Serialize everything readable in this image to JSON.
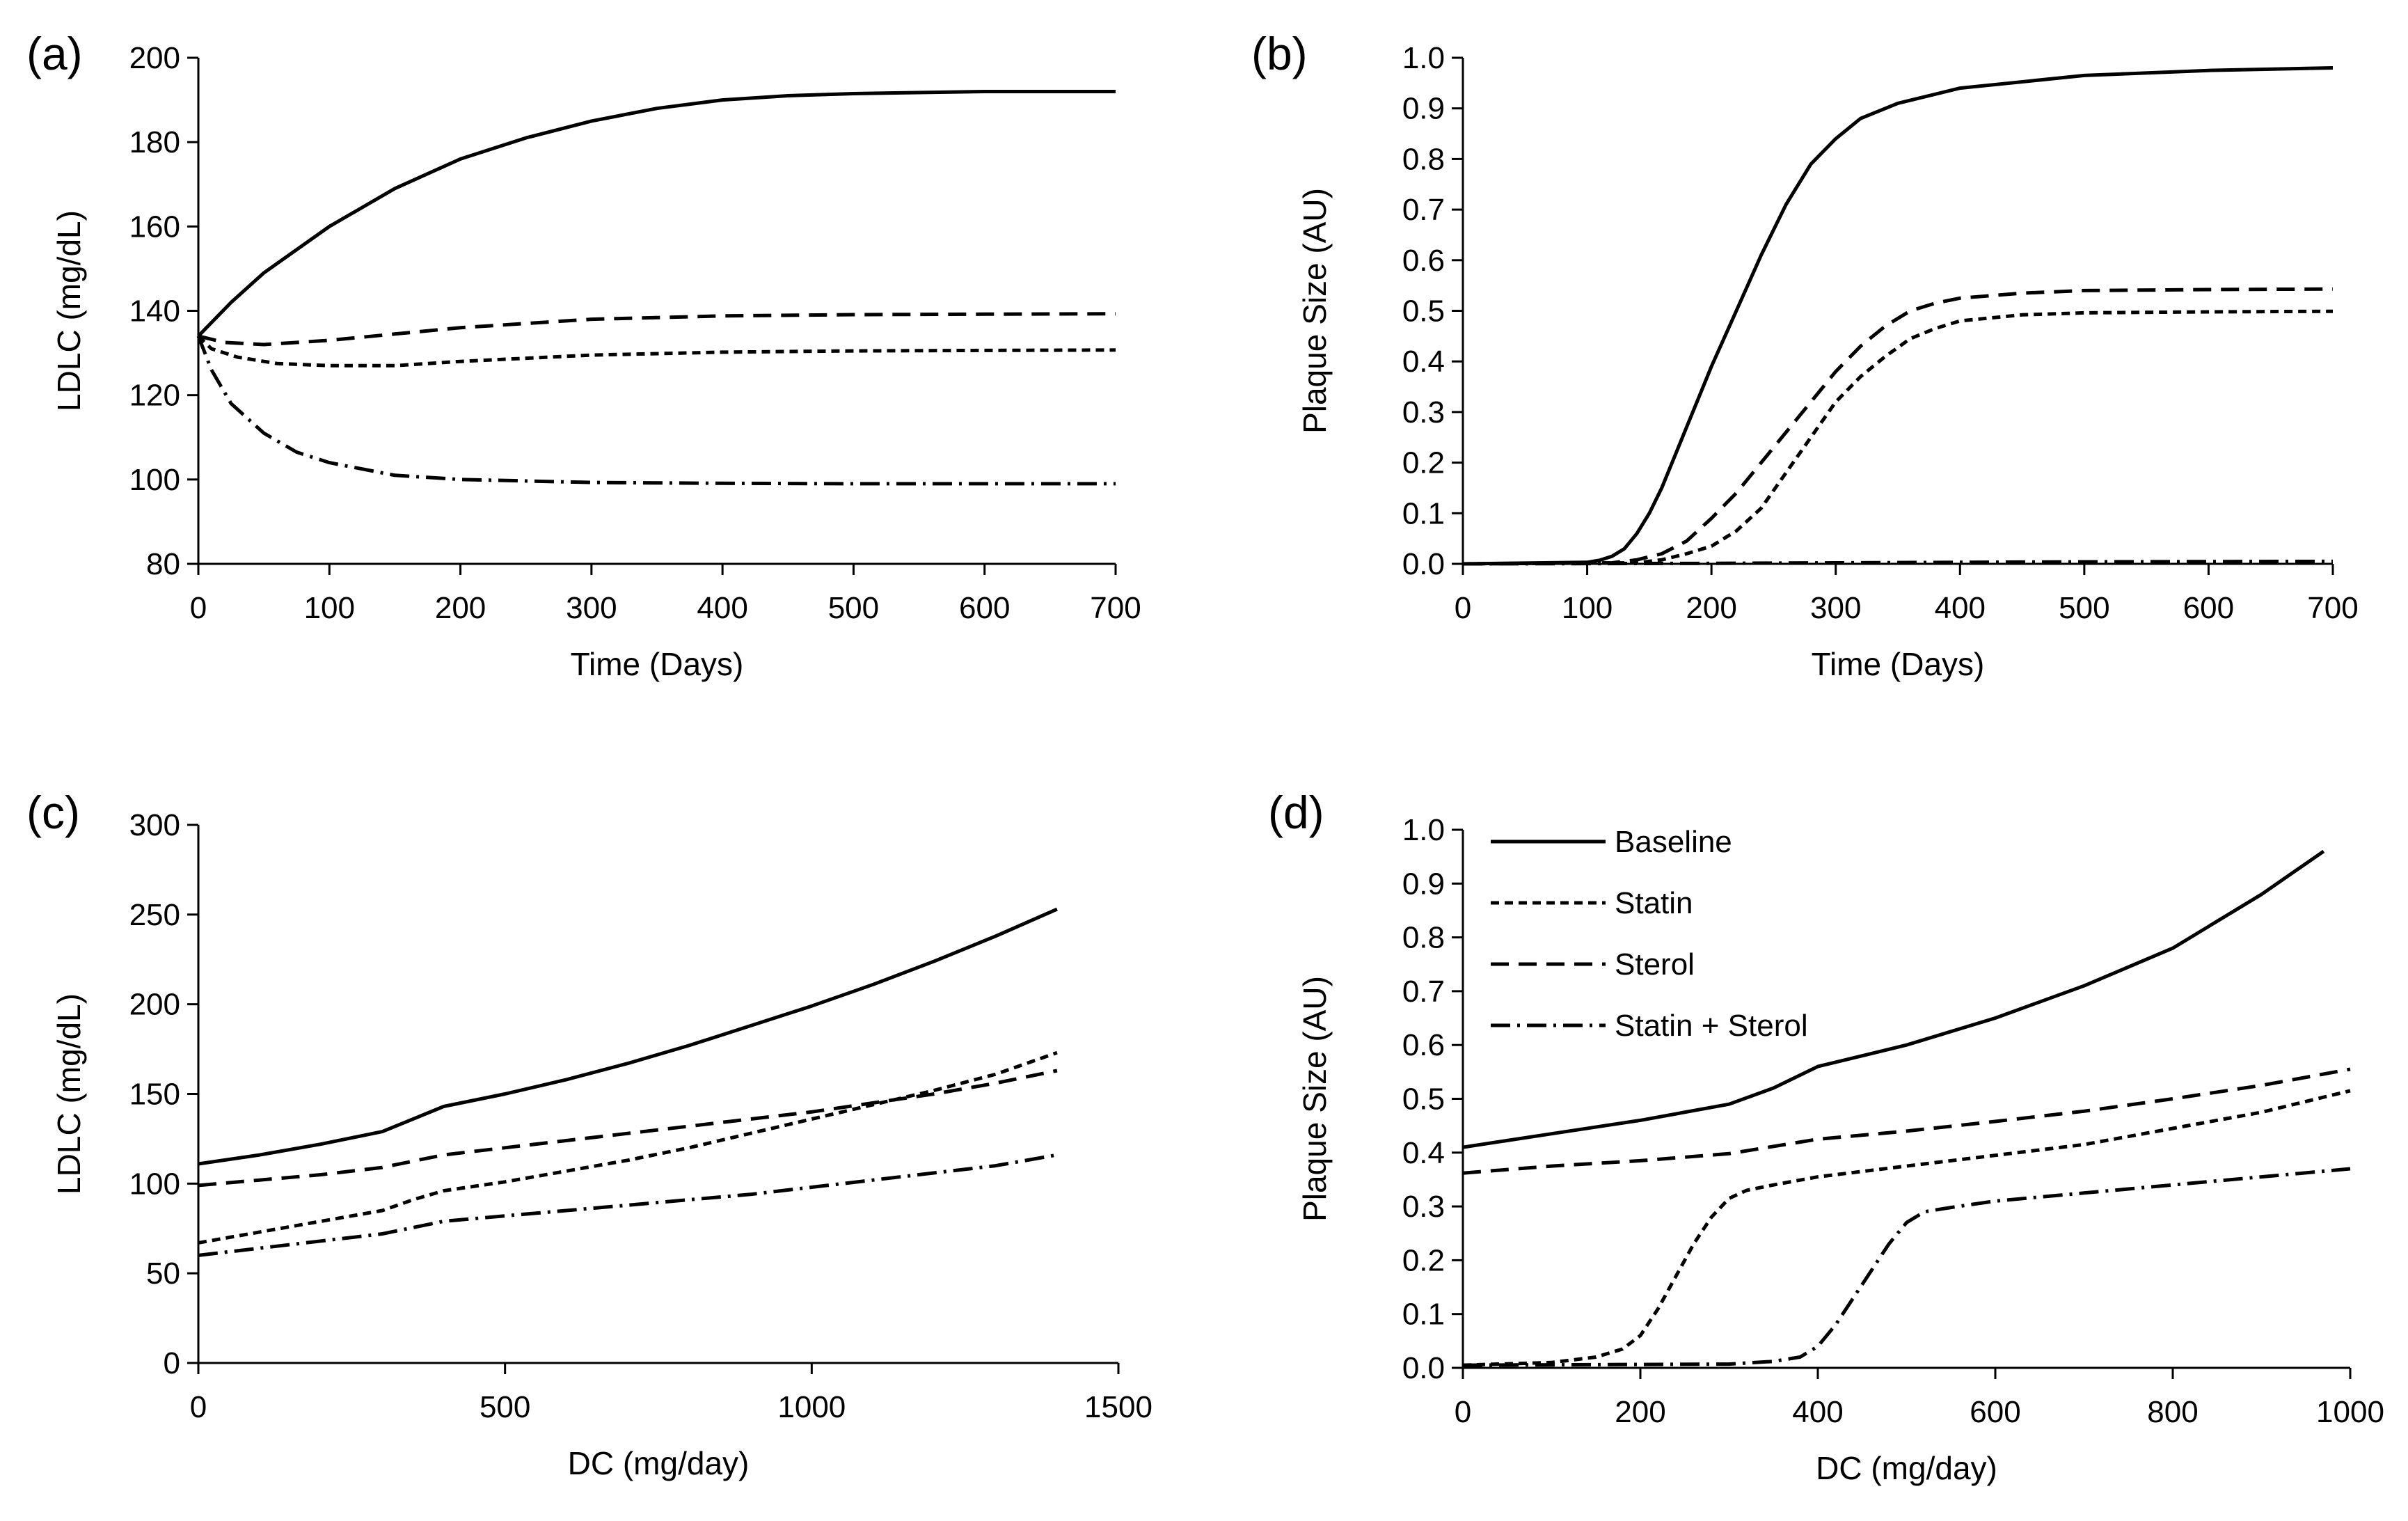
{
  "figure": {
    "series_styles": [
      {
        "name": "Baseline",
        "stroke": "#000000",
        "dash": ""
      },
      {
        "name": "Statin",
        "stroke": "#000000",
        "dash": "12 8"
      },
      {
        "name": "Sterol",
        "stroke": "#000000",
        "dash": "26 14"
      },
      {
        "name": "Statin + Sterol",
        "stroke": "#000000",
        "dash": "28 10 4 10"
      }
    ]
  },
  "chart_data": [
    {
      "panel": "(a)",
      "type": "line",
      "xlabel": "Time (Days)",
      "ylabel": "LDLC (mg/dL)",
      "xlim": [
        0,
        700
      ],
      "ylim": [
        80,
        200
      ],
      "xticks": [
        "0",
        "100",
        "200",
        "300",
        "400",
        "500",
        "600",
        "700"
      ],
      "yticks": [
        "80",
        "100",
        "120",
        "140",
        "160",
        "180",
        "200"
      ],
      "legend": false,
      "series": [
        {
          "name": "Baseline",
          "x": [
            0,
            25,
            50,
            100,
            150,
            200,
            250,
            300,
            350,
            400,
            450,
            500,
            600,
            700
          ],
          "y": [
            134,
            142,
            149,
            160,
            169,
            176,
            181,
            185,
            188,
            190,
            191,
            191.5,
            192,
            192
          ]
        },
        {
          "name": "Statin",
          "x": [
            0,
            10,
            30,
            60,
            100,
            150,
            200,
            300,
            400,
            500,
            600,
            700
          ],
          "y": [
            134,
            131,
            129,
            127.5,
            127,
            127,
            128,
            129.5,
            130.2,
            130.5,
            130.6,
            130.7
          ]
        },
        {
          "name": "Sterol",
          "x": [
            0,
            20,
            50,
            100,
            150,
            200,
            250,
            300,
            400,
            500,
            600,
            700
          ],
          "y": [
            134,
            132.5,
            132,
            133,
            134.5,
            136,
            137,
            138,
            138.8,
            139.1,
            139.2,
            139.3
          ]
        },
        {
          "name": "Statin + Sterol",
          "x": [
            0,
            10,
            25,
            50,
            75,
            100,
            150,
            200,
            300,
            400,
            500,
            600,
            700
          ],
          "y": [
            134,
            126,
            118,
            111,
            106.5,
            104,
            101,
            100,
            99.3,
            99.1,
            99,
            99,
            99
          ]
        }
      ]
    },
    {
      "panel": "(b)",
      "type": "line",
      "xlabel": "Time (Days)",
      "ylabel": "Plaque Size (AU)",
      "xlim": [
        0,
        700
      ],
      "ylim": [
        0,
        1
      ],
      "xticks": [
        "0",
        "100",
        "200",
        "300",
        "400",
        "500",
        "600",
        "700"
      ],
      "yticks": [
        "0.0",
        "0.1",
        "0.2",
        "0.3",
        "0.4",
        "0.5",
        "0.6",
        "0.7",
        "0.8",
        "0.9",
        "1.0"
      ],
      "legend": false,
      "series": [
        {
          "name": "Baseline",
          "x": [
            0,
            100,
            110,
            120,
            130,
            140,
            150,
            160,
            170,
            180,
            190,
            200,
            220,
            240,
            260,
            280,
            300,
            320,
            350,
            400,
            500,
            600,
            700
          ],
          "y": [
            0,
            0.003,
            0.007,
            0.015,
            0.03,
            0.06,
            0.1,
            0.15,
            0.21,
            0.27,
            0.33,
            0.39,
            0.5,
            0.61,
            0.71,
            0.79,
            0.84,
            0.88,
            0.91,
            0.94,
            0.965,
            0.975,
            0.98
          ]
        },
        {
          "name": "Statin",
          "x": [
            0,
            140,
            160,
            180,
            200,
            220,
            240,
            260,
            280,
            300,
            320,
            340,
            360,
            380,
            400,
            450,
            500,
            600,
            700
          ],
          "y": [
            0,
            0.002,
            0.008,
            0.02,
            0.035,
            0.065,
            0.11,
            0.18,
            0.25,
            0.32,
            0.37,
            0.41,
            0.445,
            0.465,
            0.48,
            0.492,
            0.496,
            0.498,
            0.499
          ]
        },
        {
          "name": "Sterol",
          "x": [
            0,
            120,
            140,
            160,
            180,
            200,
            220,
            240,
            260,
            280,
            300,
            320,
            340,
            360,
            380,
            400,
            450,
            500,
            600,
            700
          ],
          "y": [
            0,
            0.002,
            0.008,
            0.02,
            0.045,
            0.09,
            0.14,
            0.2,
            0.26,
            0.32,
            0.38,
            0.43,
            0.47,
            0.5,
            0.515,
            0.525,
            0.535,
            0.54,
            0.542,
            0.543
          ]
        },
        {
          "name": "Statin + Sterol",
          "x": [
            0,
            200,
            300,
            400,
            500,
            700
          ],
          "y": [
            0,
            0.001,
            0.002,
            0.003,
            0.004,
            0.005
          ]
        }
      ]
    },
    {
      "panel": "(c)",
      "type": "line",
      "xlabel": "DC (mg/day)",
      "ylabel": "LDLC (mg/dL)",
      "xlim": [
        0,
        1500
      ],
      "ylim": [
        0,
        300
      ],
      "xticks": [
        "0",
        "500",
        "1000",
        "1500"
      ],
      "yticks": [
        "0",
        "50",
        "100",
        "150",
        "200",
        "250",
        "300"
      ],
      "legend": false,
      "series": [
        {
          "name": "Baseline",
          "x": [
            0,
            100,
            200,
            300,
            350,
            400,
            500,
            600,
            700,
            800,
            900,
            1000,
            1100,
            1200,
            1300,
            1400
          ],
          "y": [
            111,
            116,
            122,
            129,
            136,
            143,
            150,
            158,
            167,
            177,
            188,
            199,
            211,
            224,
            238,
            253
          ]
        },
        {
          "name": "Statin",
          "x": [
            0,
            100,
            200,
            300,
            350,
            400,
            500,
            600,
            700,
            800,
            900,
            1000,
            1100,
            1200,
            1300,
            1400
          ],
          "y": [
            67,
            73,
            79,
            85,
            91,
            96,
            101,
            107,
            113,
            120,
            128,
            136,
            144,
            152,
            161,
            173
          ]
        },
        {
          "name": "Sterol",
          "x": [
            0,
            100,
            200,
            300,
            400,
            500,
            600,
            700,
            800,
            900,
            1000,
            1100,
            1200,
            1300,
            1400
          ],
          "y": [
            99,
            102,
            105,
            109,
            116,
            120,
            124,
            128,
            132,
            136,
            140,
            145,
            150,
            156,
            163
          ]
        },
        {
          "name": "Statin + Sterol",
          "x": [
            0,
            100,
            200,
            300,
            400,
            500,
            600,
            700,
            800,
            900,
            1000,
            1100,
            1200,
            1300,
            1400
          ],
          "y": [
            60,
            64,
            68,
            72,
            79,
            82,
            85,
            88,
            91,
            94,
            98,
            102,
            106,
            110,
            116
          ]
        }
      ]
    },
    {
      "panel": "(d)",
      "type": "line",
      "xlabel": "DC (mg/day)",
      "ylabel": "Plaque Size (AU)",
      "xlim": [
        0,
        1000
      ],
      "ylim": [
        0,
        1
      ],
      "xticks": [
        "0",
        "200",
        "400",
        "600",
        "800",
        "1000"
      ],
      "yticks": [
        "0.0",
        "0.1",
        "0.2",
        "0.3",
        "0.4",
        "0.5",
        "0.6",
        "0.7",
        "0.8",
        "0.9",
        "1.0"
      ],
      "legend": true,
      "legend_position": "top-left",
      "series": [
        {
          "name": "Baseline",
          "x": [
            0,
            100,
            200,
            300,
            350,
            400,
            450,
            500,
            600,
            700,
            800,
            900,
            970
          ],
          "y": [
            0.41,
            0.435,
            0.46,
            0.49,
            0.52,
            0.56,
            0.58,
            0.6,
            0.65,
            0.71,
            0.78,
            0.88,
            0.96
          ]
        },
        {
          "name": "Statin",
          "x": [
            0,
            100,
            150,
            180,
            200,
            220,
            240,
            260,
            280,
            300,
            320,
            350,
            400,
            500,
            600,
            700,
            800,
            900,
            1000
          ],
          "y": [
            0.005,
            0.01,
            0.02,
            0.035,
            0.06,
            0.11,
            0.17,
            0.23,
            0.28,
            0.315,
            0.33,
            0.34,
            0.355,
            0.375,
            0.395,
            0.415,
            0.445,
            0.475,
            0.515
          ]
        },
        {
          "name": "Sterol",
          "x": [
            0,
            100,
            200,
            300,
            400,
            500,
            600,
            700,
            800,
            900,
            1000
          ],
          "y": [
            0.362,
            0.375,
            0.385,
            0.398,
            0.425,
            0.44,
            0.458,
            0.477,
            0.5,
            0.525,
            0.555
          ]
        },
        {
          "name": "Statin + Sterol",
          "x": [
            0,
            300,
            350,
            380,
            400,
            420,
            440,
            460,
            480,
            500,
            520,
            550,
            600,
            700,
            800,
            900,
            1000
          ],
          "y": [
            0.005,
            0.007,
            0.012,
            0.02,
            0.04,
            0.08,
            0.13,
            0.18,
            0.23,
            0.27,
            0.29,
            0.298,
            0.31,
            0.325,
            0.34,
            0.355,
            0.37
          ]
        }
      ]
    }
  ]
}
